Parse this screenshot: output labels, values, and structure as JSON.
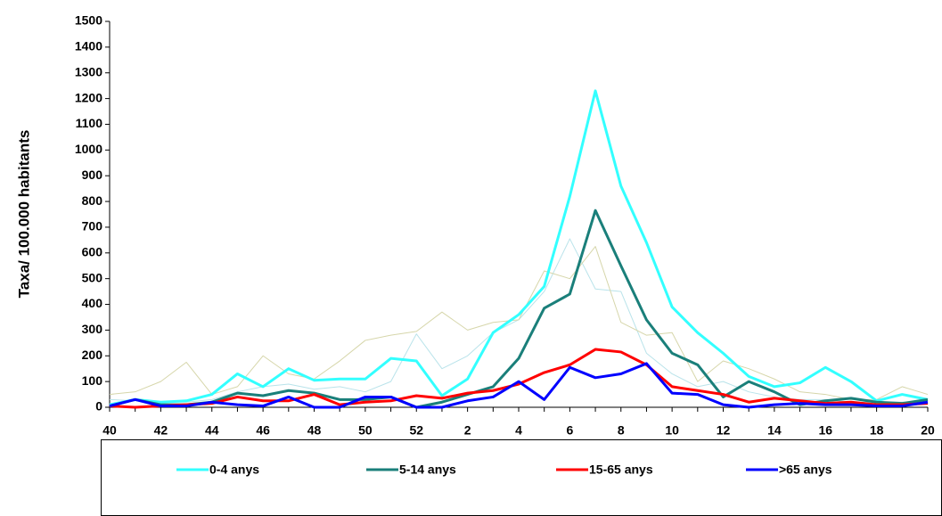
{
  "chart_data": {
    "type": "line",
    "y_label": "Taxa/ 100.000 habitants",
    "categories": [
      40,
      null,
      42,
      null,
      44,
      null,
      46,
      null,
      48,
      null,
      50,
      null,
      52,
      null,
      2,
      null,
      4,
      null,
      6,
      null,
      8,
      null,
      10,
      null,
      12,
      null,
      14,
      null,
      16,
      null,
      18,
      null,
      20
    ],
    "ylim": [
      0,
      1500
    ],
    "yticks": [
      0,
      100,
      200,
      300,
      400,
      500,
      600,
      700,
      800,
      900,
      1000,
      1100,
      1200,
      1300,
      1400,
      1500
    ],
    "grid": false,
    "legend": "bottom",
    "series": [
      {
        "color": "#b9e3ea",
        "width": 1,
        "values": [
          30,
          25,
          20,
          20,
          30,
          60,
          80,
          90,
          70,
          80,
          60,
          100,
          285,
          150,
          200,
          290,
          340,
          450,
          655,
          460,
          450,
          210,
          130,
          80,
          100,
          60,
          40,
          30,
          30,
          20,
          20,
          20,
          20
        ]
      },
      {
        "color": "#d6d6aa",
        "width": 1,
        "values": [
          50,
          60,
          100,
          175,
          50,
          80,
          200,
          130,
          110,
          180,
          260,
          280,
          295,
          370,
          300,
          330,
          340,
          530,
          500,
          625,
          330,
          280,
          290,
          100,
          180,
          150,
          110,
          60,
          50,
          30,
          30,
          80,
          50
        ]
      },
      {
        "name": "0-4 anys",
        "color": "#33ffff",
        "width": 3,
        "values": [
          10,
          30,
          20,
          25,
          50,
          130,
          80,
          150,
          105,
          110,
          110,
          190,
          180,
          45,
          110,
          290,
          360,
          470,
          820,
          1230,
          860,
          640,
          390,
          290,
          210,
          120,
          80,
          95,
          155,
          100,
          25,
          50,
          30
        ]
      },
      {
        "name": "5-14 anys",
        "color": "#1a7f7a",
        "width": 3,
        "values": [
          5,
          30,
          10,
          10,
          20,
          55,
          45,
          65,
          55,
          30,
          30,
          40,
          0,
          20,
          50,
          80,
          190,
          385,
          440,
          765,
          550,
          340,
          210,
          165,
          40,
          100,
          60,
          10,
          25,
          35,
          20,
          15,
          30
        ]
      },
      {
        "name": "15-65 anys",
        "color": "#ff0000",
        "width": 3,
        "values": [
          5,
          0,
          5,
          10,
          15,
          40,
          25,
          25,
          50,
          10,
          20,
          25,
          45,
          35,
          55,
          65,
          90,
          135,
          165,
          225,
          215,
          165,
          80,
          65,
          50,
          20,
          35,
          25,
          15,
          20,
          10,
          10,
          15
        ]
      },
      {
        "name": ">65 anys",
        "color": "#0000ff",
        "width": 3,
        "values": [
          5,
          30,
          5,
          5,
          20,
          10,
          5,
          40,
          0,
          0,
          40,
          40,
          0,
          0,
          25,
          40,
          100,
          30,
          155,
          115,
          130,
          170,
          55,
          50,
          10,
          0,
          10,
          15,
          10,
          10,
          5,
          5,
          20
        ]
      }
    ]
  }
}
